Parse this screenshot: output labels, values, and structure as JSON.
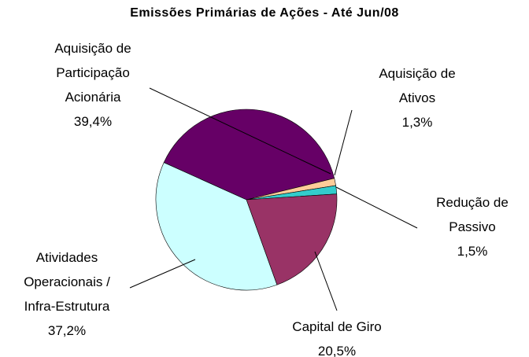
{
  "chart_data": {
    "type": "pie",
    "title": "Emissões Primárias de Ações -  Até Jun/08",
    "categories": [
      "Aquisição de Participação Acionária",
      "Aquisição de Ativos",
      "Redução de Passivo",
      "Capital de Giro",
      "Atividades Operacionais / Infra-Estrutura"
    ],
    "values": [
      39.4,
      1.3,
      1.5,
      20.5,
      37.2
    ],
    "value_labels": [
      "39,4%",
      "1,3%",
      "1,5%",
      "20,5%",
      "37,2%"
    ],
    "colors": [
      "#660066",
      "#FFCC99",
      "#33CCCC",
      "#993366",
      "#CCFFFF"
    ]
  }
}
